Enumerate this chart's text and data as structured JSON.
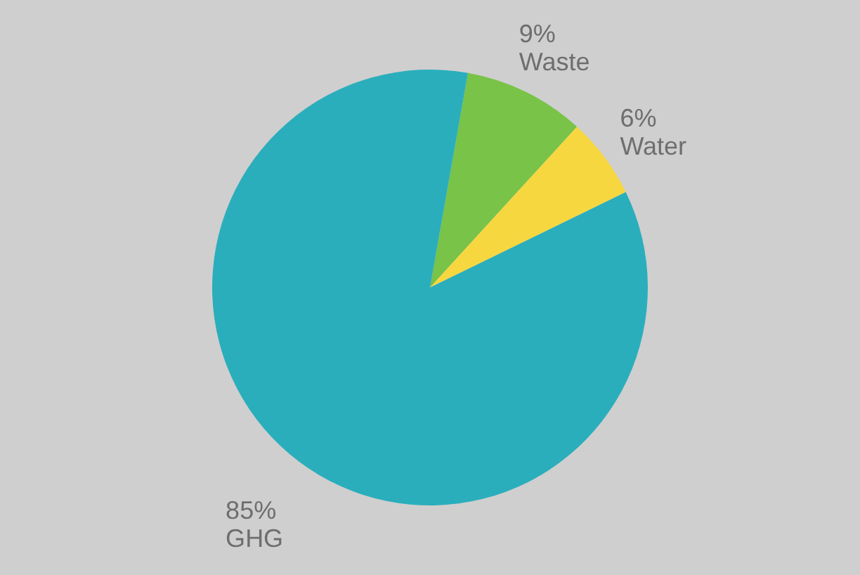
{
  "chart_data": {
    "type": "pie",
    "categories": [
      "Waste",
      "Water",
      "GHG"
    ],
    "values": [
      9,
      6,
      85
    ],
    "colors": [
      "#78c348",
      "#f6d740",
      "#2aaebc"
    ],
    "value_labels": [
      "9%",
      "6%",
      "85%"
    ]
  }
}
